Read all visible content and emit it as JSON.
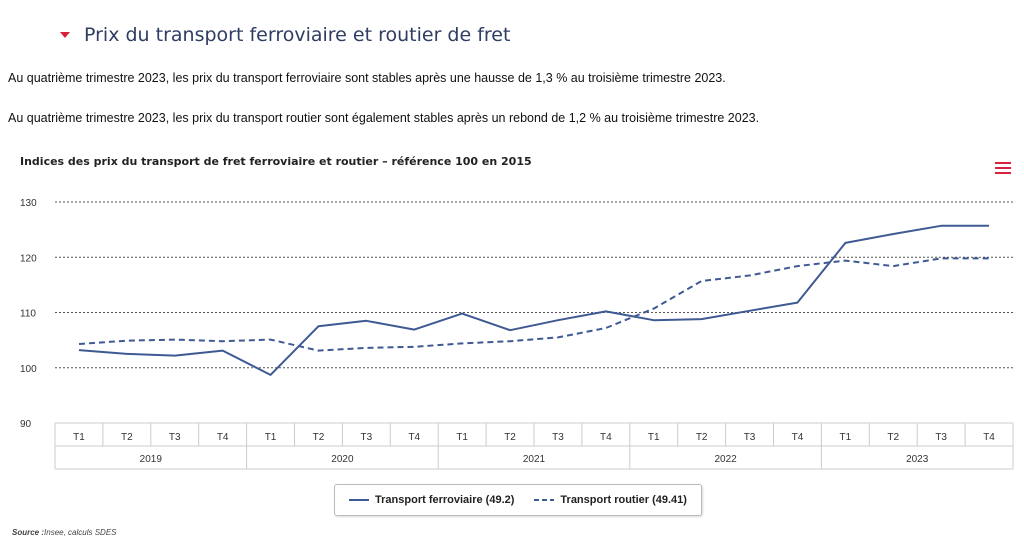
{
  "section": {
    "title": "Prix du transport ferroviaire et routier de fret"
  },
  "paragraphs": [
    "Au quatrième trimestre 2023, les prix du transport ferroviaire sont stables après une hausse de 1,3 % au troisième trimestre 2023.",
    "Au quatrième trimestre 2023, les prix du transport routier sont également stables après un rebond de 1,2 % au troisième trimestre 2023."
  ],
  "source": {
    "label": "Source :",
    "text": "Insee, calculs SDES"
  },
  "menu_icon": "hamburger-menu-icon",
  "chart_data": {
    "type": "line",
    "title": "Indices des prix du transport de fret ferroviaire et routier – référence 100 en 2015",
    "quarters": [
      "T1",
      "T2",
      "T3",
      "T4",
      "T1",
      "T2",
      "T3",
      "T4",
      "T1",
      "T2",
      "T3",
      "T4",
      "T1",
      "T2",
      "T3",
      "T4",
      "T1",
      "T2",
      "T3",
      "T4"
    ],
    "years": [
      "2019",
      "2020",
      "2021",
      "2022",
      "2023"
    ],
    "ylim": [
      90,
      130
    ],
    "yticks": [
      90,
      100,
      110,
      120,
      130
    ],
    "grid": true,
    "legend_position": "bottom-center",
    "series": [
      {
        "name": "Transport ferroviaire (49.2)",
        "color": "#3f5a93",
        "dash": false,
        "values": [
          103.2,
          102.5,
          102.2,
          103.1,
          98.7,
          107.5,
          108.5,
          106.9,
          109.8,
          106.8,
          108.6,
          110.2,
          108.6,
          108.8,
          110.3,
          111.8,
          122.6,
          124.2,
          125.7,
          125.7
        ]
      },
      {
        "name": "Transport routier (49.41)",
        "color": "#3f5a93",
        "dash": true,
        "values": [
          104.3,
          104.9,
          105.1,
          104.8,
          105.1,
          103.1,
          103.6,
          103.8,
          104.4,
          104.8,
          105.5,
          107.2,
          110.7,
          115.7,
          116.7,
          118.4,
          119.4,
          118.4,
          119.8,
          119.8
        ]
      }
    ]
  }
}
